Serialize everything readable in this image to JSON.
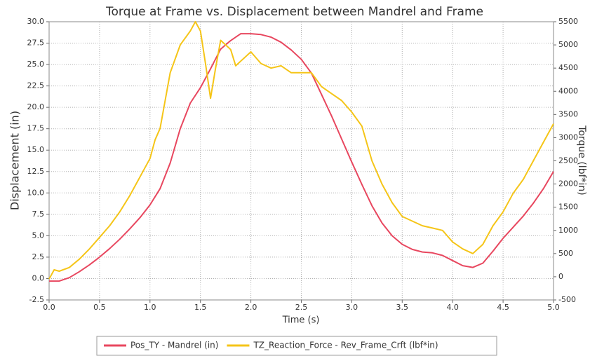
{
  "chart_data": {
    "type": "line",
    "title": "Torque at Frame vs. Displacement between Mandrel and Frame",
    "xlabel": "Time (s)",
    "ylabel": "Displacement (in)",
    "y2label": "Torque (lbf*in)",
    "xlim": [
      0,
      5
    ],
    "ylim": [
      -2.5,
      30
    ],
    "y2lim": [
      -500,
      5500
    ],
    "xticks": [
      {
        "value": 0,
        "label": "0.0"
      },
      0.5,
      {
        "value": 1,
        "label": "1.0"
      },
      1.5,
      {
        "value": 2,
        "label": "2.0"
      },
      2.5,
      {
        "value": 3,
        "label": "3.0"
      },
      3.5,
      {
        "value": 4,
        "label": "4.0"
      },
      4.5,
      {
        "value": 5,
        "label": "5.0"
      }
    ],
    "yticks": [
      -2.5,
      {
        "value": 0,
        "label": "0.0"
      },
      2.5,
      {
        "value": 5,
        "label": "5.0"
      },
      7.5,
      {
        "value": 10,
        "label": "10.0"
      },
      12.5,
      {
        "value": 15,
        "label": "15.0"
      },
      17.5,
      {
        "value": 20,
        "label": "20.0"
      },
      22.5,
      {
        "value": 25,
        "label": "25.0"
      },
      27.5,
      {
        "value": 30,
        "label": "30.0"
      }
    ],
    "y2ticks": [
      -500,
      0,
      500,
      1000,
      1500,
      2000,
      2500,
      3000,
      3500,
      4000,
      4500,
      5000,
      5500
    ],
    "grid": true,
    "legend": "bottom",
    "series": [
      {
        "name": "Pos_TY - Mandrel (in)",
        "color": "#e8475f",
        "x": [
          0,
          0.1,
          0.2,
          0.3,
          0.4,
          0.5,
          0.6,
          0.7,
          0.8,
          0.9,
          1.0,
          1.1,
          1.2,
          1.3,
          1.4,
          1.5,
          1.6,
          1.7,
          1.8,
          1.9,
          2.0,
          2.1,
          2.2,
          2.3,
          2.4,
          2.5,
          2.6,
          2.7,
          2.8,
          2.9,
          3.0,
          3.1,
          3.2,
          3.3,
          3.4,
          3.5,
          3.6,
          3.7,
          3.8,
          3.9,
          4.0,
          4.1,
          4.2,
          4.3,
          4.4,
          4.5,
          4.6,
          4.7,
          4.8,
          4.9,
          5.0
        ],
        "values": [
          -0.3,
          -0.3,
          0.1,
          0.8,
          1.6,
          2.5,
          3.5,
          4.6,
          5.8,
          7.1,
          8.6,
          10.5,
          13.5,
          17.5,
          20.5,
          22.3,
          24.5,
          26.8,
          27.8,
          28.6,
          28.6,
          28.5,
          28.2,
          27.6,
          26.7,
          25.6,
          24,
          21.5,
          19,
          16.3,
          13.6,
          11,
          8.5,
          6.5,
          5,
          4,
          3.4,
          3.1,
          3,
          2.7,
          2.1,
          1.5,
          1.3,
          1.8,
          3.2,
          4.7,
          6,
          7.3,
          8.8,
          10.5,
          12.5
        ]
      },
      {
        "name": "TZ_Reaction_Force - Rev_Frame_Crft (lbf*in)",
        "color": "#f5c518",
        "axis": "y2",
        "x": [
          0,
          0.05,
          0.1,
          0.2,
          0.3,
          0.4,
          0.5,
          0.6,
          0.7,
          0.8,
          0.9,
          1.0,
          1.05,
          1.1,
          1.15,
          1.2,
          1.3,
          1.4,
          1.45,
          1.5,
          1.55,
          1.6,
          1.65,
          1.7,
          1.8,
          1.85,
          1.9,
          2.0,
          2.1,
          2.2,
          2.3,
          2.4,
          2.5,
          2.6,
          2.7,
          2.8,
          2.9,
          3.0,
          3.1,
          3.2,
          3.3,
          3.4,
          3.5,
          3.6,
          3.7,
          3.8,
          3.9,
          4.0,
          4.1,
          4.2,
          4.3,
          4.4,
          4.5,
          4.6,
          4.7,
          4.8,
          4.9,
          5.0
        ],
        "values": [
          -50,
          150,
          120,
          200,
          380,
          600,
          850,
          1100,
          1400,
          1750,
          2150,
          2550,
          2950,
          3200,
          3800,
          4400,
          5000,
          5300,
          5500,
          5300,
          4600,
          3850,
          4500,
          5100,
          4900,
          4550,
          4650,
          4850,
          4600,
          4500,
          4550,
          4400,
          4400,
          4400,
          4100,
          3950,
          3800,
          3550,
          3250,
          2500,
          2000,
          1600,
          1300,
          1200,
          1100,
          1050,
          1000,
          750,
          600,
          500,
          700,
          1100,
          1400,
          1800,
          2100,
          2500,
          2900,
          3300
        ]
      }
    ]
  }
}
